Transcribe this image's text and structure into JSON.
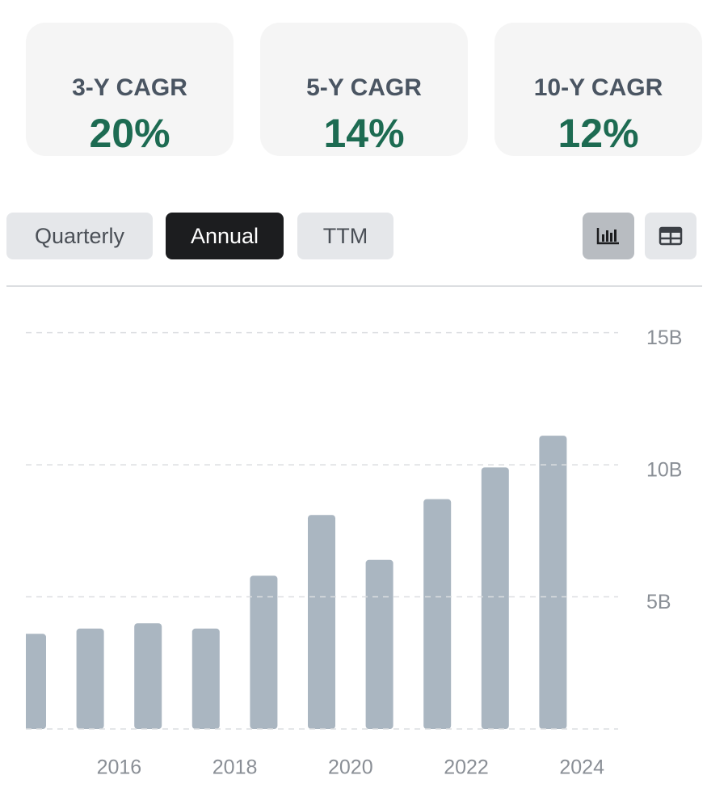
{
  "cards": [
    {
      "label": "3-Y CAGR",
      "value": "20%"
    },
    {
      "label": "5-Y CAGR",
      "value": "14%"
    },
    {
      "label": "10-Y CAGR",
      "value": "12%"
    }
  ],
  "tabs": [
    "Quarterly",
    "Annual",
    "TTM"
  ],
  "chart_data": {
    "type": "bar",
    "color": "#aab6c1",
    "categories": [
      null,
      null,
      null,
      null,
      null,
      null,
      null,
      null,
      null,
      null
    ],
    "values": [
      3600000000,
      3800000000,
      4000000000,
      3800000000,
      5800000000,
      8100000000,
      6400000000,
      8700000000,
      9900000000,
      11100000000
    ],
    "x_labels": [
      "2016",
      "2018",
      "2020",
      "2022",
      "2024"
    ],
    "ylim": [
      0,
      15600000000
    ],
    "yticks": [
      {
        "value": 5000000000,
        "label": "5B"
      },
      {
        "value": 10000000000,
        "label": "10B"
      },
      {
        "value": 15000000000,
        "label": "15B"
      }
    ],
    "grid": true
  }
}
